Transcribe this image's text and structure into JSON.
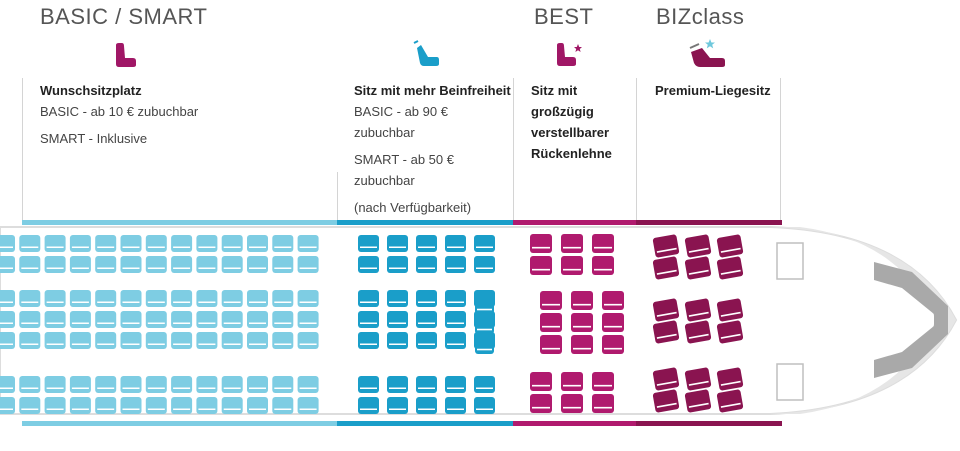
{
  "tiers": {
    "basic_smart": "BASIC / SMART",
    "best": "BEST",
    "bizclass": "BIZclass"
  },
  "columns": {
    "wunsch": {
      "heading": "Wunschsitzplatz",
      "lines": [
        "BASIC - ab 10 € zubuchbar",
        "SMART - Inklusive"
      ]
    },
    "beinfreiheit": {
      "heading": "Sitz mit mehr Beinfreiheit",
      "lines": [
        "BASIC - ab 90 €",
        "zubuchbar",
        "SMART - ab 50 €",
        "zubuchbar",
        "(nach Verfügbarkeit)"
      ]
    },
    "best": {
      "heading_lines": [
        "Sitz mit",
        "großzügig",
        "verstellbarer",
        "Rückenlehne"
      ]
    },
    "biz": {
      "heading": "Premium-Liegesitz"
    }
  },
  "colors": {
    "wunsch": "#7ecde3",
    "beinfreiheit": "#1a9ec9",
    "best": "#b01a6e",
    "biz": "#8a1450",
    "fuselage": "#e6e6e6",
    "tier_text": "#555555"
  },
  "icons": {
    "wunsch": "seat-icon",
    "beinfreiheit": "reclining-seat-icon",
    "best": "seat-star-icon",
    "biz": "flat-bed-star-icon"
  }
}
